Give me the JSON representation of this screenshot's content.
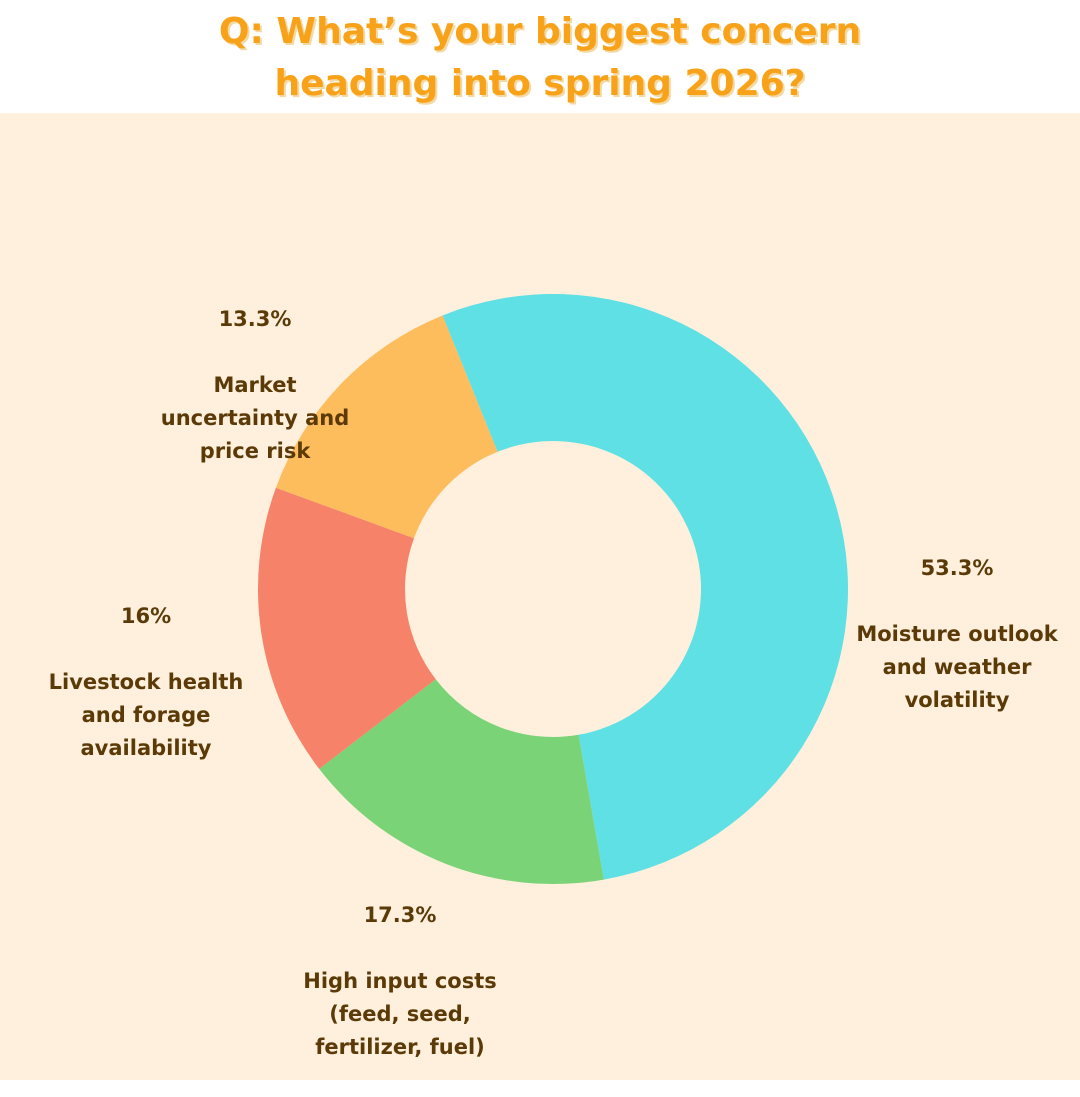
{
  "title": {
    "line1": "Q: What’s your biggest concern",
    "line2": "heading into spring 2026?"
  },
  "chart_data": {
    "type": "pie",
    "style": "donut",
    "title": "Q: What’s your biggest concern heading into spring 2026?",
    "slices": [
      {
        "label": "Moisture outlook\nand weather\nvolatility",
        "value": 53.3,
        "pct_text": "53.3%",
        "color": "#5ee0e4"
      },
      {
        "label": "High input costs\n(feed, seed,\nfertilizer, fuel)",
        "value": 17.3,
        "pct_text": "17.3%",
        "color": "#7ad377"
      },
      {
        "label": "Livestock health\nand forage\navailability",
        "value": 16,
        "pct_text": "16%",
        "color": "#f58269"
      },
      {
        "label": "Market\nuncertainty and\nprice risk",
        "value": 13.3,
        "pct_text": "13.3%",
        "color": "#fdbd5d"
      }
    ],
    "legend": "none"
  },
  "colors": {
    "title": "#f8a21a",
    "background": "#fef0dc",
    "label_text": "#5b3a07"
  }
}
